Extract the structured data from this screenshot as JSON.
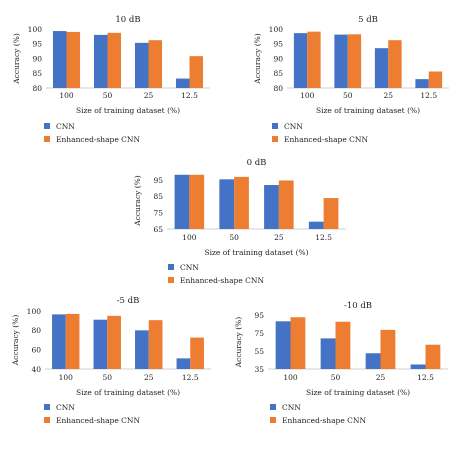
{
  "colors": {
    "cnn": "#4472c4",
    "enhanced": "#ed7d31",
    "axis": "#555555"
  },
  "chart_data": [
    {
      "type": "bar",
      "title": "10 dB",
      "xlabel": "Size of training dataset (%)",
      "ylabel": "Accuracy (%)",
      "ylim": [
        80,
        100
      ],
      "yticks": [
        80,
        85,
        90,
        95,
        100
      ],
      "categories": [
        "100",
        "50",
        "25",
        "12.5"
      ],
      "series": [
        {
          "name": "CNN",
          "values": [
            99.3,
            98.0,
            95.3,
            83.2
          ]
        },
        {
          "name": "Enhanced-shape CNN",
          "values": [
            99.0,
            98.7,
            96.2,
            90.8
          ]
        }
      ],
      "legend": "bottom-left",
      "grid": false
    },
    {
      "type": "bar",
      "title": "5 dB",
      "xlabel": "Size of training dataset (%)",
      "ylabel": "Accuracy (%)",
      "ylim": [
        80,
        100
      ],
      "yticks": [
        80,
        85,
        90,
        95,
        100
      ],
      "categories": [
        "100",
        "50",
        "25",
        "12.5"
      ],
      "series": [
        {
          "name": "CNN",
          "values": [
            98.6,
            98.1,
            93.5,
            83.0
          ]
        },
        {
          "name": "Enhanced-shape CNN",
          "values": [
            99.1,
            98.2,
            96.2,
            85.6
          ]
        }
      ],
      "legend": "bottom-left",
      "grid": false
    },
    {
      "type": "bar",
      "title": "0 dB",
      "xlabel": "Size of training dataset (%)",
      "ylabel": "Accuracy (%)",
      "ylim": [
        65,
        100
      ],
      "yticks": [
        65,
        75,
        85,
        95
      ],
      "categories": [
        "100",
        "50",
        "25",
        "12.5"
      ],
      "series": [
        {
          "name": "CNN",
          "values": [
            98.3,
            95.5,
            92.0,
            69.5
          ]
        },
        {
          "name": "Enhanced-shape CNN",
          "values": [
            98.3,
            97.0,
            94.8,
            84.0
          ]
        }
      ],
      "legend": "bottom-left",
      "grid": false
    },
    {
      "type": "bar",
      "title": "-5 dB",
      "xlabel": "Size of training dataset (%)",
      "ylabel": "Accuracy (%)",
      "ylim": [
        40,
        100
      ],
      "yticks": [
        40,
        60,
        80,
        100
      ],
      "categories": [
        "100",
        "50",
        "25",
        "12.5"
      ],
      "series": [
        {
          "name": "CNN",
          "values": [
            96.5,
            91.0,
            80.0,
            51.0
          ]
        },
        {
          "name": "Enhanced-shape CNN",
          "values": [
            97.0,
            95.0,
            90.5,
            72.5
          ]
        }
      ],
      "legend": "bottom-left",
      "grid": false
    },
    {
      "type": "bar",
      "title": "-10 dB",
      "xlabel": "Size of training dataset (%)",
      "ylabel": "Accuracy (%)",
      "ylim": [
        35,
        95
      ],
      "yticks": [
        35,
        55,
        75,
        95
      ],
      "categories": [
        "100",
        "50",
        "25",
        "12.5"
      ],
      "series": [
        {
          "name": "CNN",
          "values": [
            88.0,
            69.0,
            52.5,
            40.0
          ]
        },
        {
          "name": "Enhanced-shape CNN",
          "values": [
            92.5,
            87.5,
            78.5,
            62.0
          ]
        }
      ],
      "legend": "bottom-left",
      "grid": false
    }
  ]
}
